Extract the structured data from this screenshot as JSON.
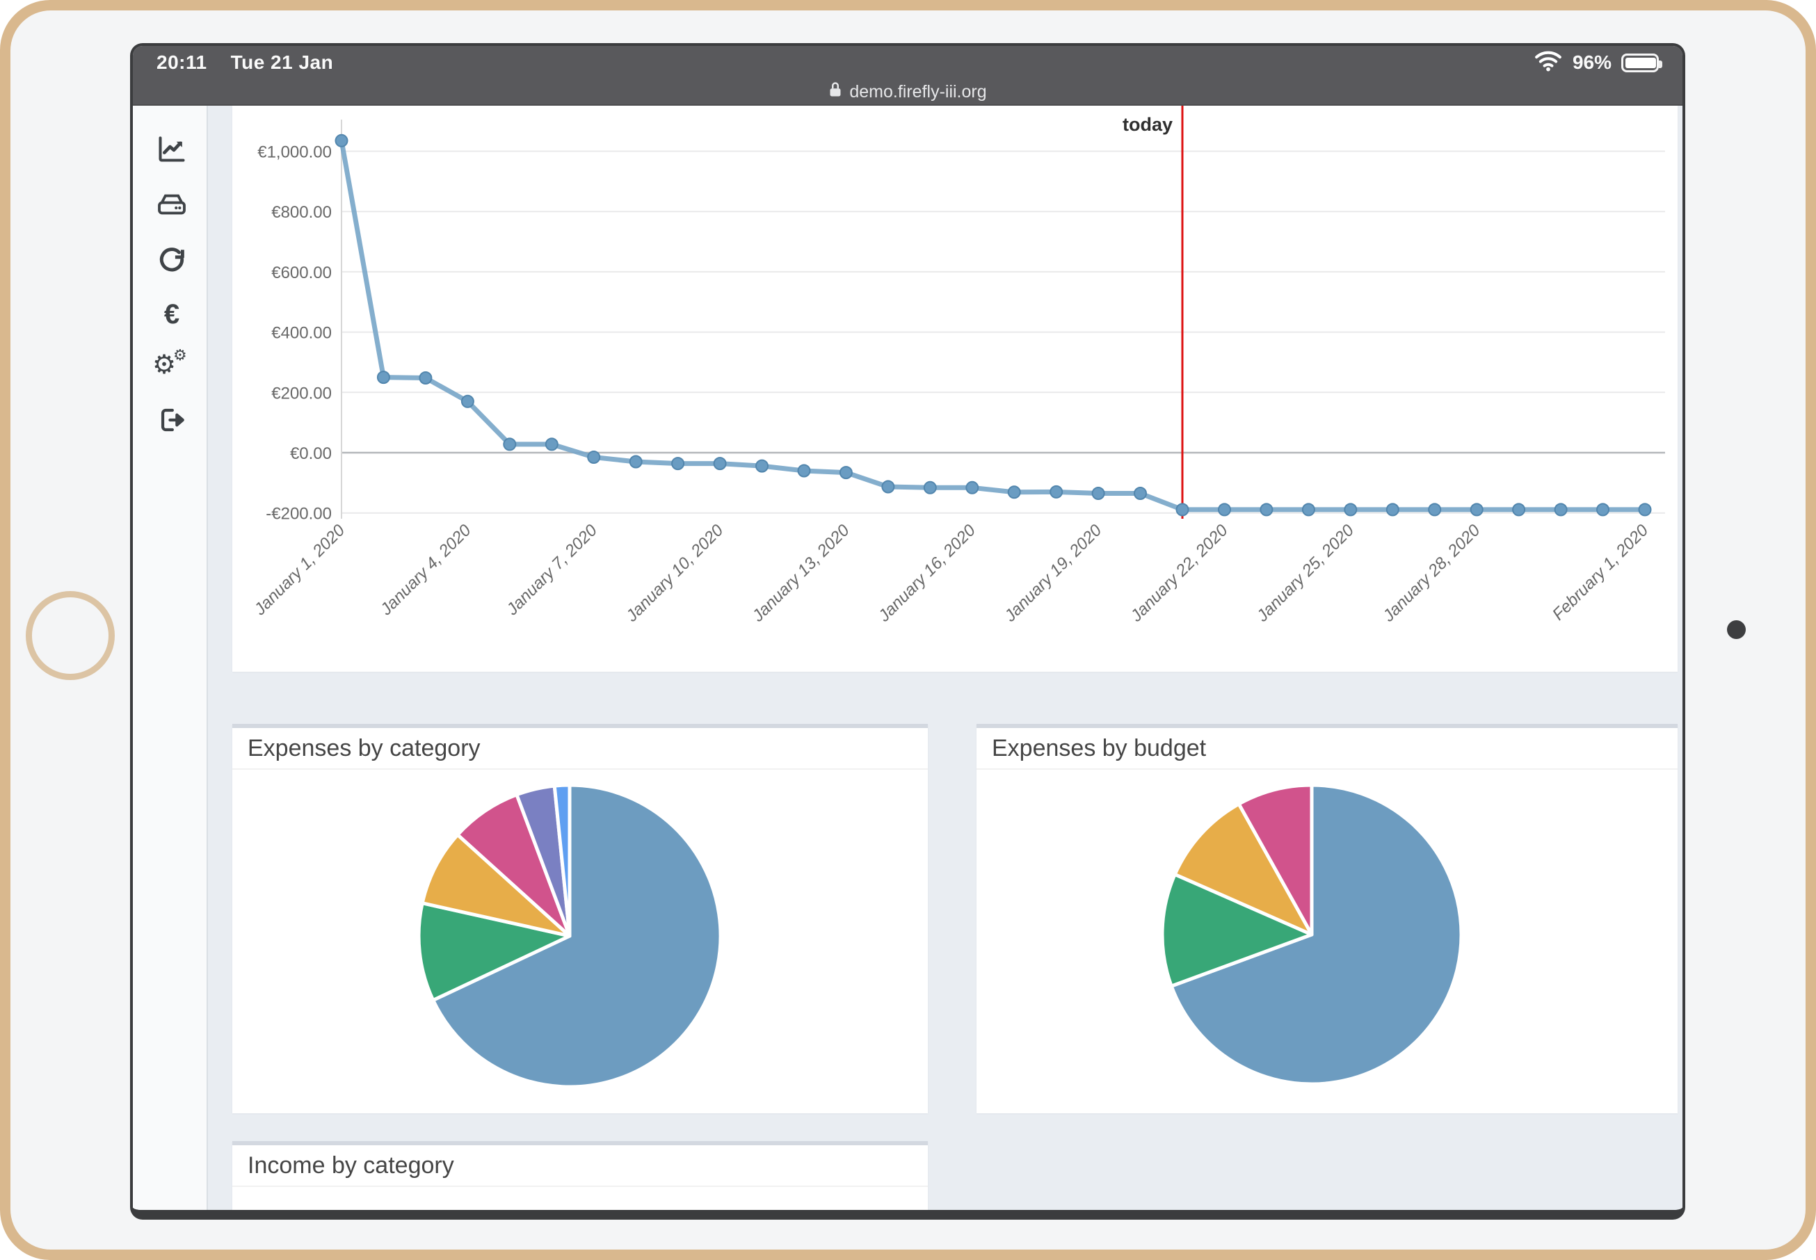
{
  "status_bar": {
    "time": "20:11",
    "date": "Tue 21 Jan",
    "battery_percent": "96%",
    "url": "demo.firefly-iii.org"
  },
  "sidebar": {
    "items": [
      {
        "icon": "chart-line-icon"
      },
      {
        "icon": "hdd-icon"
      },
      {
        "icon": "rotate-right-icon"
      },
      {
        "icon": "euro-icon"
      },
      {
        "icon": "cogs-icon"
      },
      {
        "icon": "sign-out-icon"
      }
    ]
  },
  "cards": {
    "expenses_category": {
      "title": "Expenses by category"
    },
    "expenses_budget": {
      "title": "Expenses by budget"
    },
    "income_category": {
      "title": "Income by category"
    }
  },
  "palette": {
    "blue": "#6d9cc0",
    "green": "#38a777",
    "orange": "#e7ad49",
    "pink": "#d1538c",
    "purple": "#7a80c2",
    "light_blue": "#5f9ff1",
    "line": "#77a5c8",
    "point_fill": "#6a9cc2",
    "point_stroke": "#5286ad",
    "today_red": "#dd1111",
    "grid": "#e9e9ea",
    "grid_zero": "#b4b7ba",
    "tick_text": "#686868"
  },
  "chart_data": [
    {
      "type": "line",
      "currency_symbol": "€",
      "ylim": [
        -200,
        1000
      ],
      "gridline_step": 200,
      "grid": true,
      "legend": false,
      "dates": [
        "2020-01-01",
        "2020-01-02",
        "2020-01-03",
        "2020-01-04",
        "2020-01-05",
        "2020-01-06",
        "2020-01-07",
        "2020-01-08",
        "2020-01-09",
        "2020-01-10",
        "2020-01-11",
        "2020-01-12",
        "2020-01-13",
        "2020-01-14",
        "2020-01-15",
        "2020-01-16",
        "2020-01-17",
        "2020-01-18",
        "2020-01-19",
        "2020-01-20",
        "2020-01-21",
        "2020-01-22",
        "2020-01-23",
        "2020-01-24",
        "2020-01-25",
        "2020-01-26",
        "2020-01-27",
        "2020-01-28",
        "2020-01-29",
        "2020-01-30",
        "2020-01-31",
        "2020-02-01"
      ],
      "values": [
        1035,
        250,
        248,
        170,
        28,
        28,
        -15,
        -30,
        -36,
        -36,
        -44,
        -60,
        -66,
        -113,
        -116,
        -116,
        -131,
        -130,
        -135,
        -135,
        -189,
        -189,
        -189,
        -189,
        -189,
        -189,
        -189,
        -189,
        -189,
        -189,
        -189,
        -189
      ],
      "tick_days": [
        0,
        3,
        6,
        9,
        12,
        15,
        18,
        21,
        24,
        27,
        31
      ],
      "tick_labels": [
        "January 1, 2020",
        "January 4, 2020",
        "January 7, 2020",
        "January 10, 2020",
        "January 13, 2020",
        "January 16, 2020",
        "January 19, 2020",
        "January 22, 2020",
        "January 25, 2020",
        "January 28, 2020",
        "February 1, 2020"
      ],
      "ytick_values": [
        1000,
        800,
        600,
        400,
        200,
        0,
        -200
      ],
      "annotation": {
        "label": "today",
        "date": "2020-01-21",
        "day_index": 20
      }
    },
    {
      "type": "pie",
      "title": "Expenses by category",
      "legend": false,
      "segments": [
        {
          "color": "blue",
          "percent": 68.0
        },
        {
          "color": "green",
          "percent": 10.5
        },
        {
          "color": "orange",
          "percent": 8.2
        },
        {
          "color": "pink",
          "percent": 7.6
        },
        {
          "color": "purple",
          "percent": 4.1
        },
        {
          "color": "light_blue",
          "percent": 1.6
        }
      ]
    },
    {
      "type": "pie",
      "title": "Expenses by budget",
      "legend": false,
      "segments": [
        {
          "color": "blue",
          "percent": 69.4
        },
        {
          "color": "green",
          "percent": 12.2
        },
        {
          "color": "orange",
          "percent": 10.3
        },
        {
          "color": "pink",
          "percent": 8.1
        }
      ]
    }
  ]
}
